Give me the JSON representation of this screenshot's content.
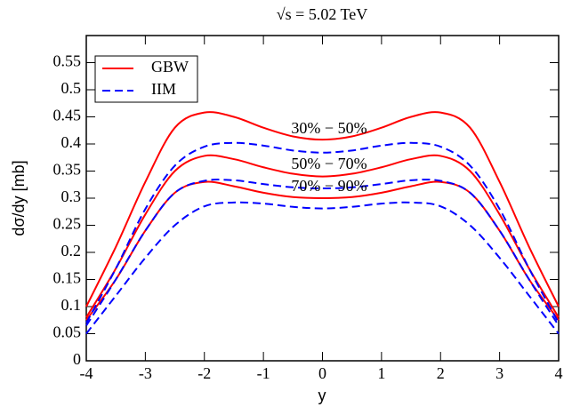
{
  "chart_data": {
    "type": "line",
    "title": "√s = 5.02 TeV",
    "xlabel": "y",
    "ylabel": "dσ/dy [mb]",
    "x": [
      -4,
      -3.5,
      -3,
      -2.5,
      -2,
      -1.5,
      -1,
      -0.5,
      0,
      0.5,
      1,
      1.5,
      2,
      2.5,
      3,
      3.5,
      4
    ],
    "xlim": [
      -4,
      4
    ],
    "xticks": [
      -4,
      -3,
      -2,
      -1,
      0,
      1,
      2,
      3,
      4
    ],
    "ylim": [
      0,
      0.6
    ],
    "yticks": [
      0,
      0.05,
      0.1,
      0.15,
      0.2,
      0.25,
      0.3,
      0.35,
      0.4,
      0.45,
      0.5,
      0.55
    ],
    "legend": "upper left",
    "annotations": [
      "30% − 50%",
      "50% − 70%",
      "70% − 90%"
    ],
    "series": [
      {
        "name": "GBW",
        "color": "#ff0000",
        "dashed": false,
        "curves": [
          {
            "values": [
              0.1,
              0.21,
              0.33,
              0.43,
              0.458,
              0.45,
              0.43,
              0.414,
              0.408,
              0.414,
              0.43,
              0.45,
              0.458,
              0.43,
              0.33,
              0.21,
              0.1
            ]
          },
          {
            "values": [
              0.08,
              0.17,
              0.27,
              0.35,
              0.378,
              0.372,
              0.357,
              0.345,
              0.34,
              0.345,
              0.357,
              0.372,
              0.378,
              0.35,
              0.27,
              0.17,
              0.08
            ]
          },
          {
            "values": [
              0.075,
              0.15,
              0.24,
              0.31,
              0.33,
              0.322,
              0.31,
              0.302,
              0.3,
              0.302,
              0.31,
              0.322,
              0.33,
              0.31,
              0.24,
              0.15,
              0.075
            ]
          }
        ]
      },
      {
        "name": "IIM",
        "color": "#0000ff",
        "dashed": true,
        "curves": [
          {
            "values": [
              0.07,
              0.17,
              0.28,
              0.36,
              0.395,
              0.402,
              0.397,
              0.388,
              0.384,
              0.388,
              0.397,
              0.402,
              0.395,
              0.36,
              0.28,
              0.17,
              0.07
            ]
          },
          {
            "values": [
              0.065,
              0.15,
              0.24,
              0.31,
              0.332,
              0.333,
              0.326,
              0.32,
              0.318,
              0.32,
              0.326,
              0.333,
              0.332,
              0.31,
              0.24,
              0.15,
              0.065
            ]
          },
          {
            "values": [
              0.05,
              0.12,
              0.19,
              0.25,
              0.285,
              0.292,
              0.29,
              0.284,
              0.281,
              0.284,
              0.29,
              0.292,
              0.285,
              0.25,
              0.19,
              0.12,
              0.05
            ]
          }
        ]
      }
    ]
  }
}
